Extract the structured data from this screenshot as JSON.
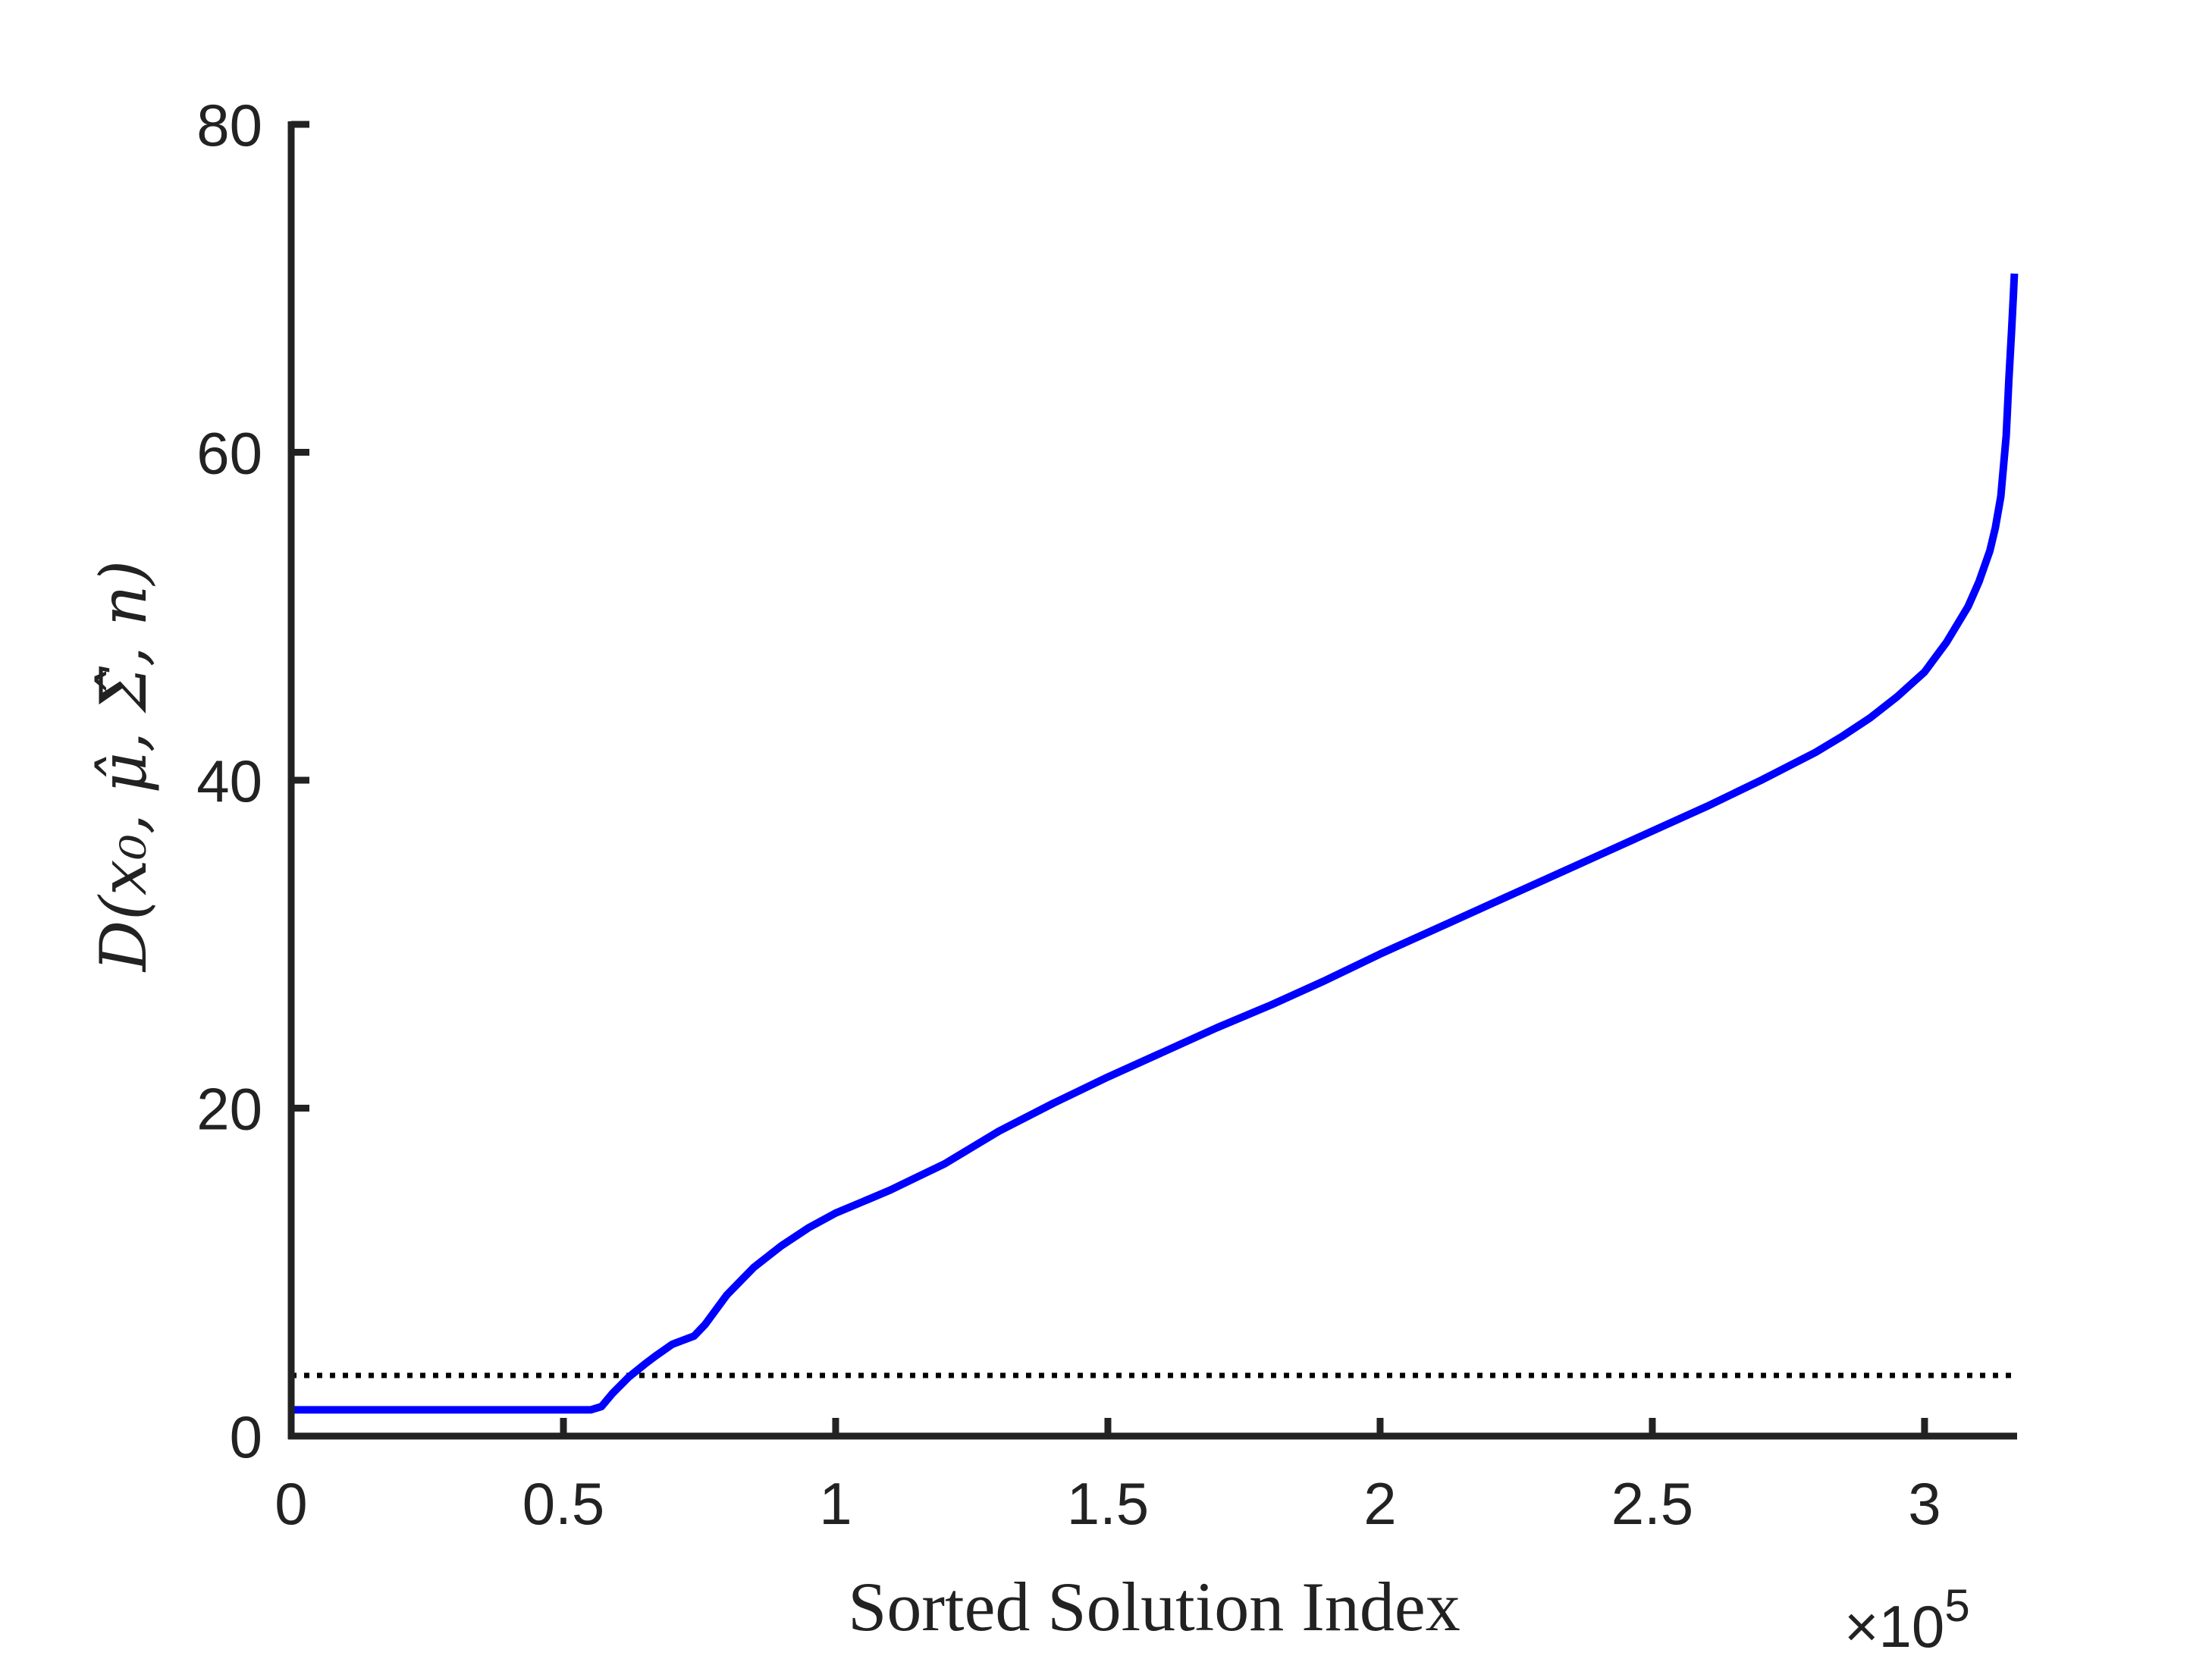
{
  "chart_data": {
    "type": "line",
    "xlabel": "Sorted Solution Index",
    "ylabel": "D(x₀, μ̂, Σ̂, n)",
    "x_exponent_label": "×10",
    "x_exponent_power": "5",
    "xlim": [
      0,
      3.17
    ],
    "ylim": [
      0,
      80
    ],
    "x_ticks": [
      0,
      0.5,
      1,
      1.5,
      2,
      2.5,
      3
    ],
    "x_tick_labels": [
      "0",
      "0.5",
      "1",
      "1.5",
      "2",
      "2.5",
      "3"
    ],
    "y_ticks": [
      0,
      20,
      40,
      60,
      80
    ],
    "y_tick_labels": [
      "0",
      "20",
      "40",
      "60",
      "80"
    ],
    "grid": false,
    "threshold": {
      "y": 3.7,
      "style": "dotted",
      "color": "#000000"
    },
    "series": [
      {
        "color": "#0000ff",
        "x": [
          0,
          0.3,
          0.55,
          0.57,
          0.59,
          0.62,
          0.65,
          0.67,
          0.7,
          0.74,
          0.76,
          0.8,
          0.85,
          0.9,
          0.95,
          1.0,
          1.05,
          1.1,
          1.15,
          1.2,
          1.25,
          1.3,
          1.4,
          1.5,
          1.6,
          1.7,
          1.8,
          1.9,
          2.0,
          2.1,
          2.2,
          2.3,
          2.4,
          2.5,
          2.6,
          2.7,
          2.8,
          2.85,
          2.9,
          2.95,
          3.0,
          3.04,
          3.08,
          3.1,
          3.12,
          3.13,
          3.14,
          3.15,
          3.155,
          3.16,
          3.163,
          3.165
        ],
        "y": [
          1.6,
          1.6,
          1.6,
          1.8,
          2.6,
          3.6,
          4.4,
          4.9,
          5.6,
          6.1,
          6.8,
          8.6,
          10.3,
          11.6,
          12.7,
          13.6,
          14.3,
          15.0,
          15.8,
          16.6,
          17.6,
          18.6,
          20.3,
          21.9,
          23.4,
          24.9,
          26.3,
          27.8,
          29.4,
          30.9,
          32.4,
          33.9,
          35.4,
          36.9,
          38.4,
          40.0,
          41.7,
          42.7,
          43.8,
          45.1,
          46.6,
          48.4,
          50.6,
          52.1,
          54.0,
          55.4,
          57.3,
          61.0,
          64.5,
          67.5,
          69.5,
          70.9
        ]
      }
    ]
  }
}
